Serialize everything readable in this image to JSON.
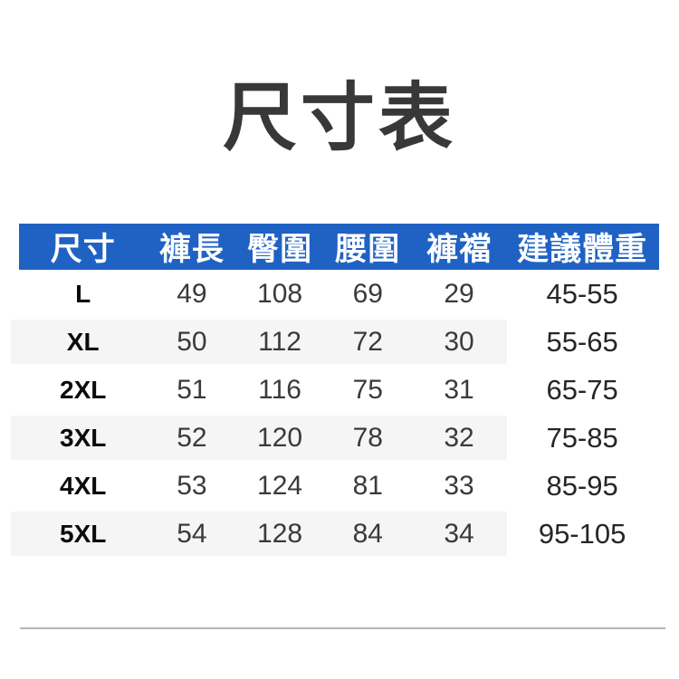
{
  "page": {
    "title": "尺寸表"
  },
  "colors": {
    "header_bg": "#2062c4",
    "header_text": "#ffffff",
    "stripe_bg": "#f5f5f6",
    "title_text": "#38383a",
    "number_text": "#3a3a3a",
    "size_label_text": "#0b0b0b",
    "divider": "#b5b5b5"
  },
  "chart_data": {
    "type": "table",
    "title": "尺寸表",
    "columns": [
      "尺寸",
      "褲長",
      "臀圍",
      "腰圍",
      "褲襠",
      "建議體重"
    ],
    "rows": [
      [
        "L",
        "49",
        "108",
        "69",
        "29",
        "45-55"
      ],
      [
        "XL",
        "50",
        "112",
        "72",
        "30",
        "55-65"
      ],
      [
        "2XL",
        "51",
        "116",
        "75",
        "31",
        "65-75"
      ],
      [
        "3XL",
        "52",
        "120",
        "78",
        "32",
        "75-85"
      ],
      [
        "4XL",
        "53",
        "124",
        "81",
        "33",
        "85-95"
      ],
      [
        "5XL",
        "54",
        "128",
        "84",
        "34",
        "95-105"
      ]
    ]
  }
}
